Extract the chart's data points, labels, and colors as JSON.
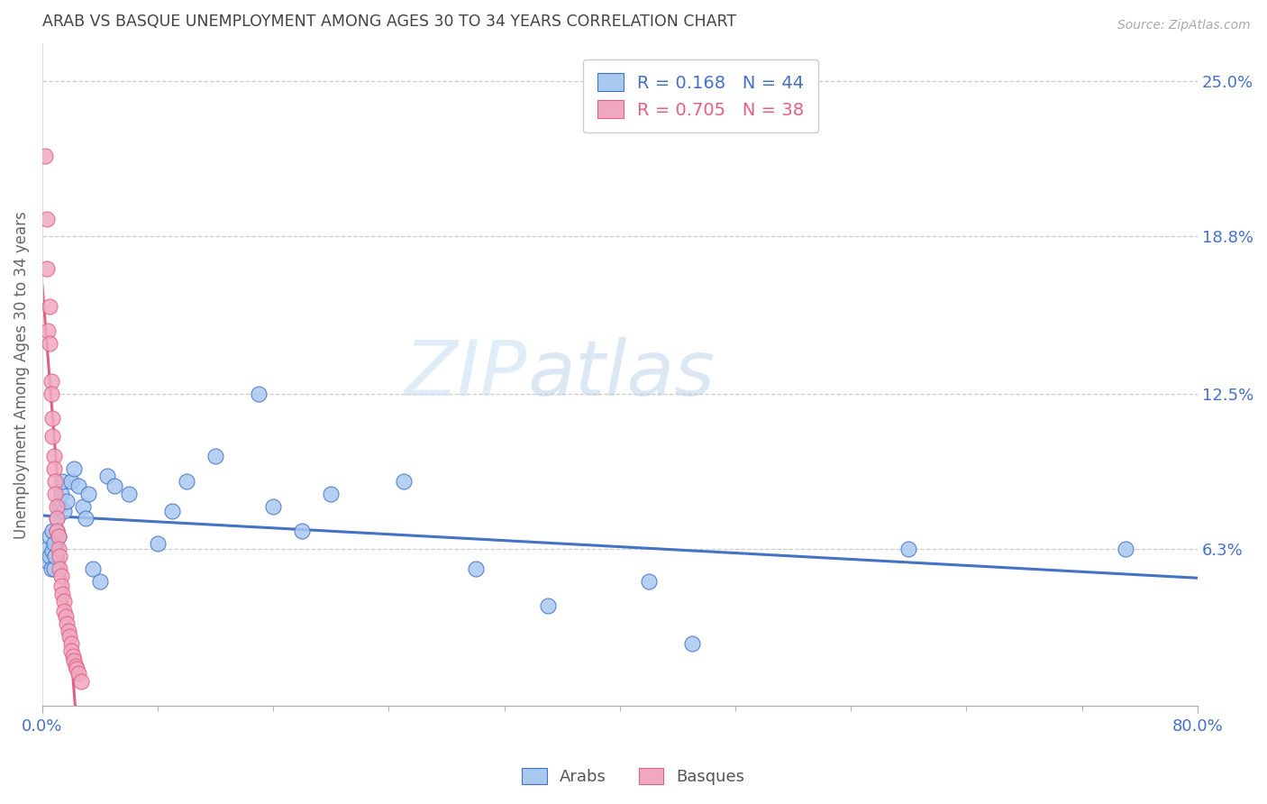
{
  "title": "ARAB VS BASQUE UNEMPLOYMENT AMONG AGES 30 TO 34 YEARS CORRELATION CHART",
  "source": "Source: ZipAtlas.com",
  "ylabel": "Unemployment Among Ages 30 to 34 years",
  "xlim": [
    0.0,
    0.8
  ],
  "ylim": [
    0.0,
    0.265
  ],
  "xtick_labels_show": [
    "0.0%",
    "80.0%"
  ],
  "xtick_vals_show": [
    0.0,
    0.8
  ],
  "xtick_vals_minor": [
    0.0,
    0.08,
    0.16,
    0.24,
    0.32,
    0.4,
    0.48,
    0.56,
    0.64,
    0.72,
    0.8
  ],
  "ytick_labels_right": [
    "6.3%",
    "12.5%",
    "18.8%",
    "25.0%"
  ],
  "ytick_vals_right": [
    0.063,
    0.125,
    0.188,
    0.25
  ],
  "arab_R": 0.168,
  "arab_N": 44,
  "basque_R": 0.705,
  "basque_N": 38,
  "arab_color": "#a8c8f0",
  "basque_color": "#f0a8c0",
  "arab_line_color": "#4472c4",
  "basque_line_color": "#e06080",
  "legend_label_arab": "Arabs",
  "legend_label_basque": "Basques",
  "watermark_zip": "ZIP",
  "watermark_atlas": "atlas",
  "background_color": "#ffffff",
  "grid_color": "#cccccc",
  "title_color": "#444444",
  "right_tick_color": "#4472c4",
  "arab_scatter_x": [
    0.003,
    0.004,
    0.005,
    0.005,
    0.006,
    0.007,
    0.007,
    0.008,
    0.008,
    0.009,
    0.01,
    0.01,
    0.011,
    0.012,
    0.013,
    0.014,
    0.015,
    0.017,
    0.02,
    0.022,
    0.025,
    0.028,
    0.03,
    0.032,
    0.035,
    0.04,
    0.045,
    0.05,
    0.06,
    0.08,
    0.09,
    0.1,
    0.12,
    0.15,
    0.16,
    0.18,
    0.2,
    0.25,
    0.3,
    0.35,
    0.42,
    0.45,
    0.6,
    0.75
  ],
  "arab_scatter_y": [
    0.063,
    0.058,
    0.06,
    0.068,
    0.055,
    0.062,
    0.07,
    0.065,
    0.055,
    0.06,
    0.075,
    0.07,
    0.068,
    0.08,
    0.085,
    0.09,
    0.078,
    0.082,
    0.09,
    0.095,
    0.088,
    0.08,
    0.075,
    0.085,
    0.055,
    0.05,
    0.092,
    0.088,
    0.085,
    0.065,
    0.078,
    0.09,
    0.1,
    0.125,
    0.08,
    0.07,
    0.085,
    0.09,
    0.055,
    0.04,
    0.05,
    0.025,
    0.063,
    0.063
  ],
  "basque_scatter_x": [
    0.002,
    0.003,
    0.003,
    0.004,
    0.005,
    0.005,
    0.006,
    0.006,
    0.007,
    0.007,
    0.008,
    0.008,
    0.009,
    0.009,
    0.01,
    0.01,
    0.01,
    0.011,
    0.011,
    0.012,
    0.012,
    0.013,
    0.013,
    0.014,
    0.015,
    0.015,
    0.016,
    0.017,
    0.018,
    0.019,
    0.02,
    0.02,
    0.021,
    0.022,
    0.023,
    0.024,
    0.025,
    0.027
  ],
  "basque_scatter_y": [
    0.22,
    0.175,
    0.195,
    0.15,
    0.16,
    0.145,
    0.13,
    0.125,
    0.115,
    0.108,
    0.1,
    0.095,
    0.09,
    0.085,
    0.08,
    0.075,
    0.07,
    0.068,
    0.063,
    0.06,
    0.055,
    0.052,
    0.048,
    0.045,
    0.042,
    0.038,
    0.036,
    0.033,
    0.03,
    0.028,
    0.025,
    0.022,
    0.02,
    0.018,
    0.016,
    0.015,
    0.013,
    0.01
  ]
}
